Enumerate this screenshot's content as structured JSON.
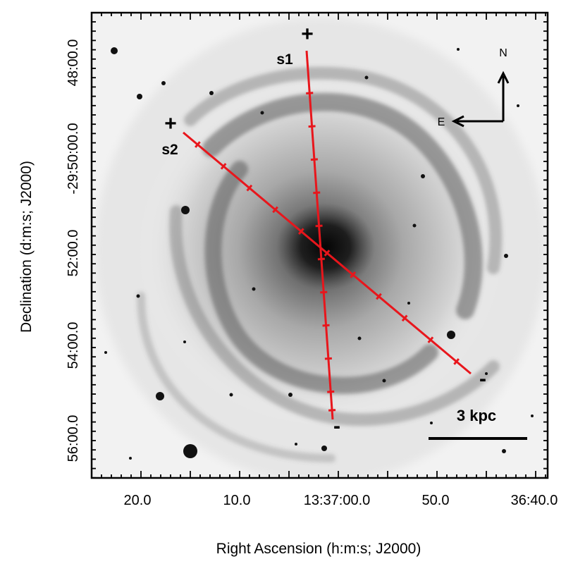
{
  "figure": {
    "x_axis": {
      "title": "Right Ascension (h:m:s; J2000)",
      "ticks": [
        "20.0",
        "10.0",
        "13:37:00.0",
        "50.0",
        "36:40.0"
      ]
    },
    "y_axis": {
      "title": "Declination (d:m:s; J2000)",
      "ticks": [
        "56:00.0",
        "54:00.0",
        "52:00.0",
        "-29:50:00.0",
        "48:00.0"
      ]
    },
    "slits": [
      {
        "label": "s1",
        "plus_mark": "+",
        "minus_mark": "-"
      },
      {
        "label": "s2",
        "plus_mark": "+",
        "minus_mark": "-"
      }
    ],
    "compass": {
      "north": "N",
      "east": "E"
    },
    "scale_bar": {
      "label": "3 kpc"
    },
    "colors": {
      "slit_line": "#e8161c",
      "background_sky": "#f2f2f2",
      "galaxy_core": "#111111",
      "frame": "#000000"
    }
  }
}
